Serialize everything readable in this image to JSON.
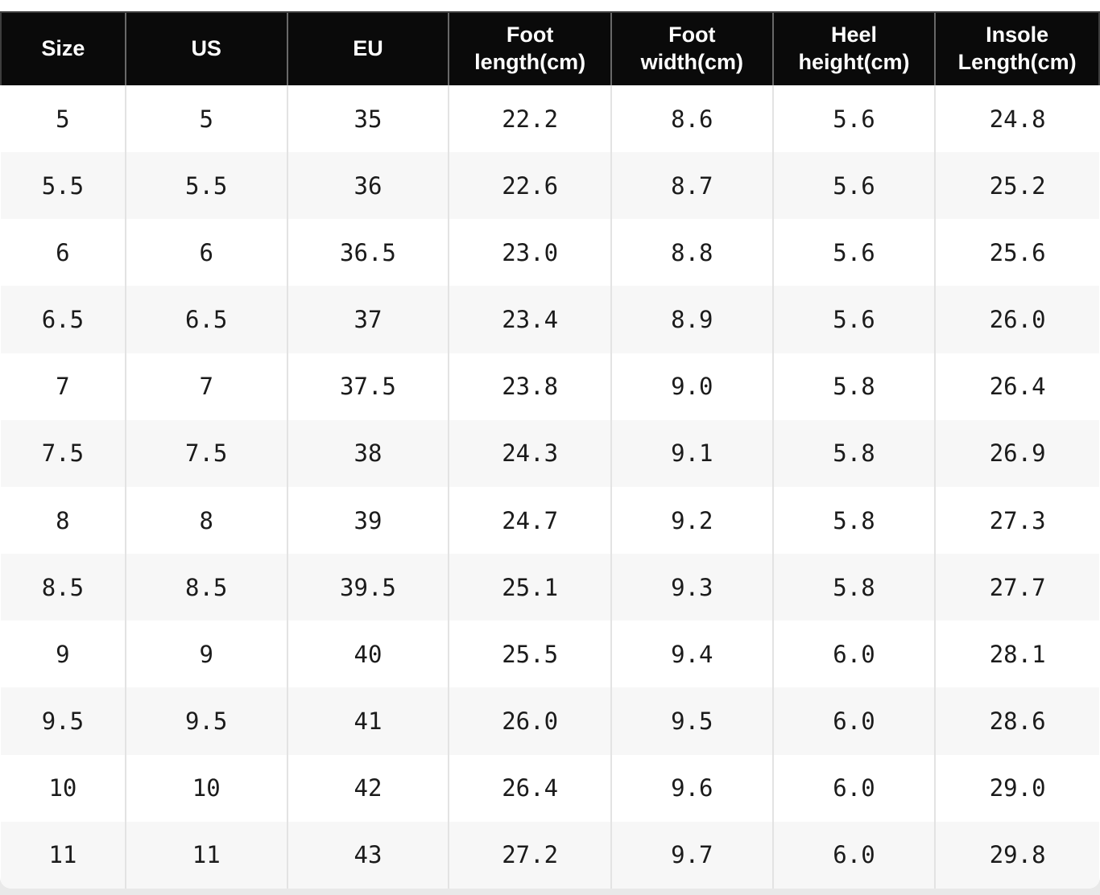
{
  "colors": {
    "header_bg": "#0a0a0a",
    "header_text": "#ffffff",
    "alt_row_bg": "#f7f7f7",
    "body_text": "#1b1b1b",
    "page_bg": "#e9e9e9"
  },
  "chart_data": {
    "type": "table",
    "layout": {
      "striped": true,
      "header_style": "black-inverted",
      "grid": "vertical-only"
    },
    "columns": [
      "Size",
      "US",
      "EU",
      "Foot length(cm)",
      "Foot width(cm)",
      "Heel height(cm)",
      "Insole Length(cm)"
    ],
    "rows": [
      [
        "5",
        "5",
        "35",
        "22.2",
        "8.6",
        "5.6",
        "24.8"
      ],
      [
        "5.5",
        "5.5",
        "36",
        "22.6",
        "8.7",
        "5.6",
        "25.2"
      ],
      [
        "6",
        "6",
        "36.5",
        "23.0",
        "8.8",
        "5.6",
        "25.6"
      ],
      [
        "6.5",
        "6.5",
        "37",
        "23.4",
        "8.9",
        "5.6",
        "26.0"
      ],
      [
        "7",
        "7",
        "37.5",
        "23.8",
        "9.0",
        "5.8",
        "26.4"
      ],
      [
        "7.5",
        "7.5",
        "38",
        "24.3",
        "9.1",
        "5.8",
        "26.9"
      ],
      [
        "8",
        "8",
        "39",
        "24.7",
        "9.2",
        "5.8",
        "27.3"
      ],
      [
        "8.5",
        "8.5",
        "39.5",
        "25.1",
        "9.3",
        "5.8",
        "27.7"
      ],
      [
        "9",
        "9",
        "40",
        "25.5",
        "9.4",
        "6.0",
        "28.1"
      ],
      [
        "9.5",
        "9.5",
        "41",
        "26.0",
        "9.5",
        "6.0",
        "28.6"
      ],
      [
        "10",
        "10",
        "42",
        "26.4",
        "9.6",
        "6.0",
        "29.0"
      ],
      [
        "11",
        "11",
        "43",
        "27.2",
        "9.7",
        "6.0",
        "29.8"
      ]
    ]
  }
}
